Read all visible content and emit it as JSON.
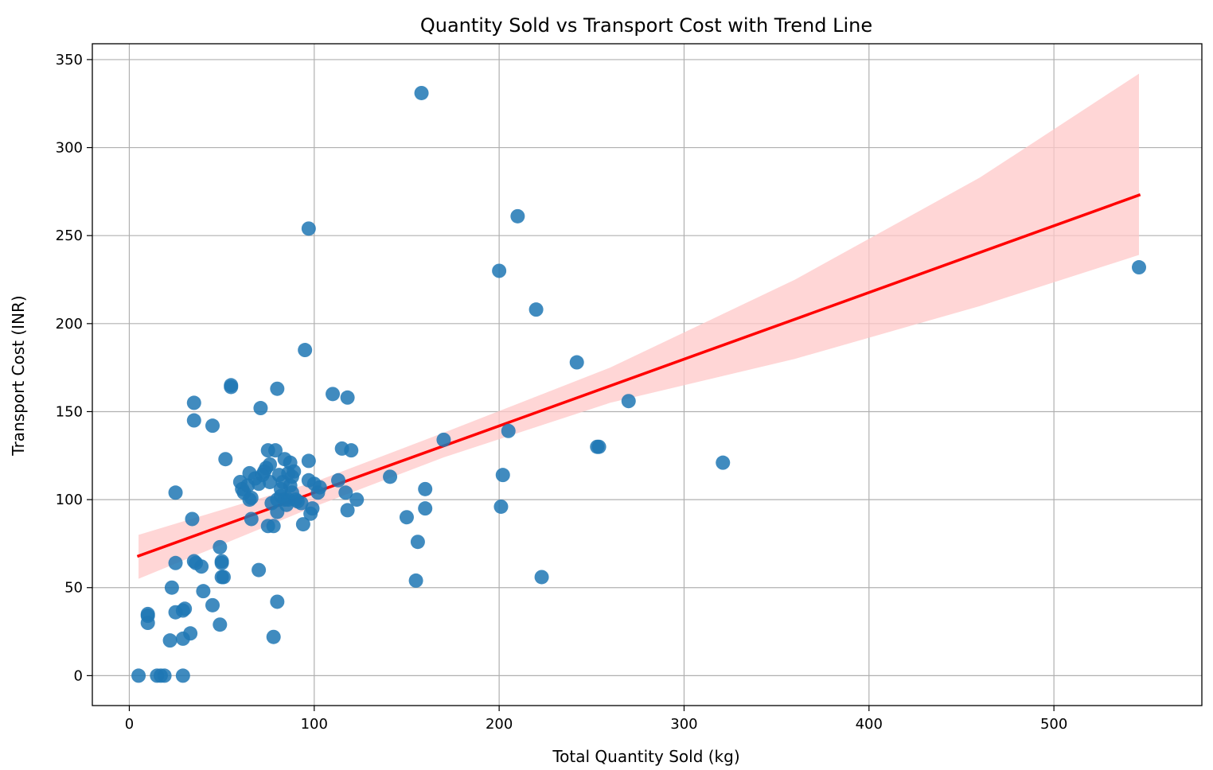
{
  "chart_data": {
    "type": "scatter",
    "title": "Quantity Sold vs Transport Cost with Trend Line",
    "xlabel": "Total Quantity Sold (kg)",
    "ylabel": "Transport Cost (INR)",
    "xlim": [
      -20,
      580
    ],
    "ylim": [
      -17,
      359
    ],
    "xticks": [
      0,
      100,
      200,
      300,
      400,
      500
    ],
    "yticks": [
      0,
      50,
      100,
      150,
      200,
      250,
      300,
      350
    ],
    "grid": true,
    "colors": {
      "points": "#1f77b4",
      "trend": "#ff0000",
      "band": "#ffc8c8"
    },
    "trend_line": {
      "x": [
        5,
        546
      ],
      "y": [
        68,
        273
      ]
    },
    "confidence_band": {
      "x": [
        5,
        100,
        170,
        260,
        360,
        460,
        546
      ],
      "upper": [
        80,
        110,
        138,
        175,
        225,
        283,
        342
      ],
      "lower": [
        55,
        96,
        124,
        155,
        180,
        210,
        239
      ]
    },
    "points": [
      [
        5,
        0
      ],
      [
        15,
        0
      ],
      [
        17,
        0
      ],
      [
        19,
        0
      ],
      [
        29,
        0
      ],
      [
        10,
        30
      ],
      [
        10,
        34
      ],
      [
        10,
        35
      ],
      [
        22,
        20
      ],
      [
        23,
        50
      ],
      [
        25,
        36
      ],
      [
        29,
        21
      ],
      [
        29,
        37
      ],
      [
        30,
        38
      ],
      [
        33,
        24
      ],
      [
        25,
        104
      ],
      [
        25,
        64
      ],
      [
        34,
        89
      ],
      [
        35,
        65
      ],
      [
        36,
        64
      ],
      [
        39,
        62
      ],
      [
        40,
        48
      ],
      [
        45,
        40
      ],
      [
        45,
        142
      ],
      [
        35,
        145
      ],
      [
        35,
        155
      ],
      [
        49,
        29
      ],
      [
        49,
        73
      ],
      [
        50,
        64
      ],
      [
        50,
        65
      ],
      [
        50,
        56
      ],
      [
        51,
        56
      ],
      [
        52,
        123
      ],
      [
        55,
        165
      ],
      [
        55,
        164
      ],
      [
        60,
        110
      ],
      [
        61,
        106
      ],
      [
        62,
        104
      ],
      [
        64,
        108
      ],
      [
        65,
        115
      ],
      [
        65,
        100
      ],
      [
        66,
        101
      ],
      [
        66,
        89
      ],
      [
        68,
        112
      ],
      [
        70,
        109
      ],
      [
        70,
        60
      ],
      [
        71,
        152
      ],
      [
        72,
        114
      ],
      [
        73,
        116
      ],
      [
        74,
        118
      ],
      [
        75,
        85
      ],
      [
        75,
        128
      ],
      [
        76,
        120
      ],
      [
        76,
        110
      ],
      [
        77,
        98
      ],
      [
        78,
        22
      ],
      [
        78,
        85
      ],
      [
        79,
        128
      ],
      [
        80,
        100
      ],
      [
        80,
        163
      ],
      [
        80,
        93
      ],
      [
        80,
        42
      ],
      [
        81,
        114
      ],
      [
        82,
        106
      ],
      [
        82,
        102
      ],
      [
        83,
        110
      ],
      [
        84,
        100
      ],
      [
        84,
        123
      ],
      [
        85,
        97
      ],
      [
        86,
        100
      ],
      [
        86,
        115
      ],
      [
        87,
        108
      ],
      [
        87,
        121
      ],
      [
        88,
        104
      ],
      [
        88,
        113
      ],
      [
        89,
        116
      ],
      [
        90,
        100
      ],
      [
        91,
        99
      ],
      [
        93,
        98
      ],
      [
        94,
        86
      ],
      [
        95,
        185
      ],
      [
        97,
        122
      ],
      [
        97,
        254
      ],
      [
        97,
        111
      ],
      [
        98,
        92
      ],
      [
        99,
        95
      ],
      [
        100,
        109
      ],
      [
        102,
        104
      ],
      [
        103,
        107
      ],
      [
        110,
        160
      ],
      [
        113,
        111
      ],
      [
        115,
        129
      ],
      [
        117,
        104
      ],
      [
        118,
        158
      ],
      [
        118,
        94
      ],
      [
        120,
        128
      ],
      [
        123,
        100
      ],
      [
        141,
        113
      ],
      [
        150,
        90
      ],
      [
        155,
        54
      ],
      [
        156,
        76
      ],
      [
        158,
        331
      ],
      [
        160,
        95
      ],
      [
        160,
        106
      ],
      [
        170,
        134
      ],
      [
        200,
        230
      ],
      [
        201,
        96
      ],
      [
        202,
        114
      ],
      [
        205,
        139
      ],
      [
        210,
        261
      ],
      [
        220,
        208
      ],
      [
        223,
        56
      ],
      [
        242,
        178
      ],
      [
        253,
        130
      ],
      [
        254,
        130
      ],
      [
        270,
        156
      ],
      [
        321,
        121
      ],
      [
        546,
        232
      ]
    ]
  }
}
